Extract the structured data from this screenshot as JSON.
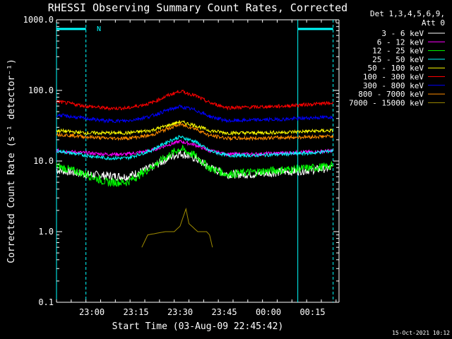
{
  "chart_data": {
    "type": "line",
    "title": "RHESSI Observing Summary Count Rates, Corrected",
    "xlabel": "Start Time (03-Aug-09 22:45:42)",
    "ylabel": "Corrected Count Rate (s⁻¹ detector⁻¹)",
    "ylog": true,
    "ylim": [
      0.1,
      1000.0
    ],
    "xlim_minutes": [
      -12,
      84
    ],
    "x_tick_labels": [
      "23:00",
      "23:15",
      "23:30",
      "23:45",
      "00:00",
      "00:15"
    ],
    "x_tick_minutes": [
      0,
      15,
      30,
      45,
      60,
      75
    ],
    "y_tick_labels": [
      "0.1",
      "1.0",
      "10.0",
      "100.0",
      "1000.0"
    ],
    "y_tick_values": [
      0.1,
      1.0,
      10.0,
      100.0,
      1000.0
    ],
    "legend_header": [
      "Det 1,3,4,5,6,9,",
      "Att 0"
    ],
    "legend_position": "top-right, outside plot",
    "timestamp": "15-Oct-2021 10:12",
    "flag_label": "N",
    "night_markers_minutes": [
      -12,
      -2,
      70,
      82
    ],
    "series": [
      {
        "name": "3 - 6 keV",
        "color": "#ffffff",
        "x_minutes": [
          -12,
          -2,
          5,
          12,
          20,
          26,
          30,
          35,
          40,
          46,
          55,
          65,
          75,
          82
        ],
        "values": [
          7.5,
          6.5,
          6.2,
          6.0,
          8,
          11,
          13,
          11,
          8,
          6.5,
          6.5,
          7,
          7.5,
          8
        ]
      },
      {
        "name": "6 - 12 keV",
        "color": "#ff00ff",
        "x_minutes": [
          -12,
          -2,
          5,
          12,
          20,
          26,
          30,
          35,
          40,
          46,
          55,
          65,
          75,
          82
        ],
        "values": [
          14,
          13,
          12.5,
          12.5,
          14,
          17,
          19,
          17,
          14,
          12.5,
          12.5,
          13,
          13.5,
          14
        ]
      },
      {
        "name": "12 - 25 keV",
        "color": "#00ff00",
        "x_minutes": [
          -12,
          -2,
          5,
          12,
          20,
          26,
          30,
          35,
          40,
          46,
          55,
          65,
          75,
          82
        ],
        "values": [
          8.5,
          6.5,
          5,
          5,
          8,
          12,
          15,
          12,
          8,
          6.5,
          7,
          7.5,
          8,
          8.5
        ]
      },
      {
        "name": "25 - 50 keV",
        "color": "#00ffff",
        "x_minutes": [
          -12,
          -2,
          5,
          12,
          20,
          26,
          30,
          35,
          40,
          46,
          55,
          65,
          75,
          82
        ],
        "values": [
          14,
          12,
          11,
          11,
          14,
          19,
          22,
          19,
          14,
          12,
          12,
          12.5,
          13,
          14
        ]
      },
      {
        "name": "50 - 100 keV",
        "color": "#ffff00",
        "x_minutes": [
          -12,
          -2,
          5,
          12,
          20,
          26,
          30,
          35,
          40,
          46,
          55,
          65,
          75,
          82
        ],
        "values": [
          27,
          25,
          25,
          25,
          27,
          32,
          36,
          32,
          27,
          25,
          25,
          25.5,
          26.5,
          27
        ]
      },
      {
        "name": "100 - 300 keV",
        "color": "#ff0000",
        "x_minutes": [
          -12,
          -2,
          5,
          12,
          20,
          26,
          30,
          35,
          40,
          46,
          55,
          65,
          75,
          82
        ],
        "values": [
          70,
          60,
          56,
          56,
          66,
          85,
          98,
          85,
          67,
          57,
          58,
          60,
          64,
          66
        ]
      },
      {
        "name": "300 - 800 keV",
        "color": "#0000ff",
        "x_minutes": [
          -12,
          -2,
          5,
          12,
          20,
          26,
          30,
          35,
          40,
          46,
          55,
          65,
          75,
          82
        ],
        "values": [
          45,
          40,
          37,
          37,
          43,
          53,
          59,
          53,
          43,
          37,
          38,
          39,
          41,
          42
        ]
      },
      {
        "name": "800 - 7000 keV",
        "color": "#ff8c00",
        "x_minutes": [
          -12,
          -2,
          5,
          12,
          20,
          26,
          30,
          35,
          40,
          46,
          55,
          65,
          75,
          82
        ],
        "values": [
          24,
          22,
          21,
          21,
          23,
          29,
          33,
          29,
          23,
          21,
          21,
          21.5,
          22,
          22.5
        ]
      },
      {
        "name": "7000 - 15000 keV",
        "color": "#a08c00",
        "x_minutes": [
          17,
          19,
          25,
          28,
          30,
          31,
          32,
          33,
          36,
          39,
          40,
          41
        ],
        "values": [
          0.6,
          0.9,
          1.0,
          1.0,
          1.2,
          1.6,
          2.1,
          1.3,
          1.0,
          1.0,
          0.9,
          0.6
        ]
      }
    ]
  }
}
